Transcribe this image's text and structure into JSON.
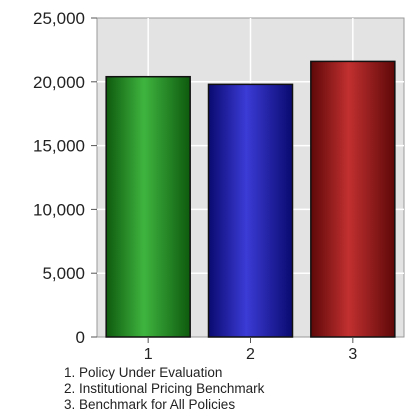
{
  "chart_data": {
    "type": "bar",
    "categories": [
      "1",
      "2",
      "3"
    ],
    "values": [
      20400,
      19800,
      21600
    ],
    "colors": [
      "#1f8a1f",
      "#1a1aa6",
      "#9a1414"
    ],
    "ylim": [
      0,
      25000
    ],
    "yticks": [
      "0",
      "5,000",
      "10,000",
      "15,000",
      "20,000",
      "25,000"
    ],
    "ytick_values": [
      0,
      5000,
      10000,
      15000,
      20000,
      25000
    ],
    "grid": true,
    "legend_placement": "bottom",
    "legend": [
      "1. Policy Under Evaluation",
      "2. Institutional Pricing Benchmark",
      "3. Benchmark for All Policies"
    ]
  }
}
